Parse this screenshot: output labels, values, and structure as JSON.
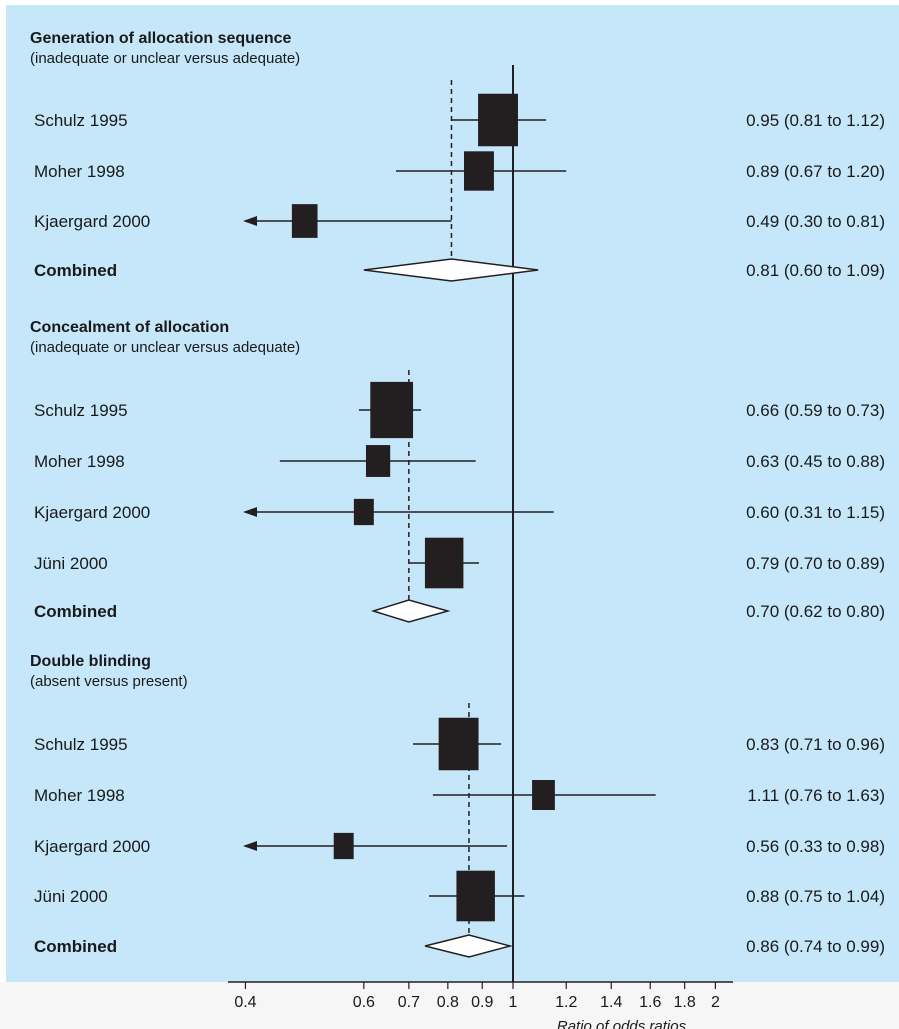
{
  "chart_data": {
    "type": "forest",
    "xlabel": "Ratio of odds ratios",
    "x_scale": "log",
    "xlim": [
      0.37,
      2.05
    ],
    "reference_line": 1,
    "x_ticks": [
      0.4,
      0.6,
      0.7,
      0.8,
      0.9,
      1,
      1.2,
      1.4,
      1.6,
      1.8,
      2
    ],
    "x_tick_labels": [
      "0.4",
      "0.6",
      "0.7",
      "0.8",
      "0.9",
      "1",
      "1.2",
      "1.4",
      "1.6",
      "1.8",
      "2"
    ],
    "groups": [
      {
        "title": "Generation of allocation sequence",
        "subtitle": "(inadequate or unclear versus adequate)",
        "studies": [
          {
            "name": "Schulz 1995",
            "estimate": 0.95,
            "lower": 0.81,
            "upper": 1.12,
            "ci_text": "0.95 (0.81 to 1.12)",
            "weight": 1.0,
            "arrow_left": false
          },
          {
            "name": "Moher 1998",
            "estimate": 0.89,
            "lower": 0.67,
            "upper": 1.2,
            "ci_text": "0.89 (0.67 to 1.20)",
            "weight": 0.65,
            "arrow_left": false
          },
          {
            "name": "Kjaergard 2000",
            "estimate": 0.49,
            "lower": 0.3,
            "upper": 0.81,
            "ci_text": "0.49 (0.30 to 0.81)",
            "weight": 0.5,
            "arrow_left": true
          }
        ],
        "combined": {
          "name": "Combined",
          "estimate": 0.81,
          "lower": 0.6,
          "upper": 1.09,
          "ci_text": "0.81 (0.60 to 1.09)"
        }
      },
      {
        "title": "Concealment of allocation",
        "subtitle": "(inadequate or unclear versus adequate)",
        "studies": [
          {
            "name": "Schulz 1995",
            "estimate": 0.66,
            "lower": 0.59,
            "upper": 0.73,
            "ci_text": "0.66 (0.59 to 0.73)",
            "weight": 1.1,
            "arrow_left": false
          },
          {
            "name": "Moher 1998",
            "estimate": 0.63,
            "lower": 0.45,
            "upper": 0.88,
            "ci_text": "0.63 (0.45 to 0.88)",
            "weight": 0.45,
            "arrow_left": false
          },
          {
            "name": "Kjaergard 2000",
            "estimate": 0.6,
            "lower": 0.31,
            "upper": 1.15,
            "ci_text": "0.60 (0.31 to 1.15)",
            "weight": 0.3,
            "arrow_left": true
          },
          {
            "name": "Jüni 2000",
            "estimate": 0.79,
            "lower": 0.7,
            "upper": 0.89,
            "ci_text": "0.79 (0.70 to 0.89)",
            "weight": 0.95,
            "arrow_left": false
          }
        ],
        "combined": {
          "name": "Combined",
          "estimate": 0.7,
          "lower": 0.62,
          "upper": 0.8,
          "ci_text": "0.70 (0.62 to 0.80)"
        }
      },
      {
        "title": "Double blinding",
        "subtitle": "(absent versus present)",
        "studies": [
          {
            "name": "Schulz 1995",
            "estimate": 0.83,
            "lower": 0.71,
            "upper": 0.96,
            "ci_text": "0.83 (0.71 to 0.96)",
            "weight": 1.0,
            "arrow_left": false
          },
          {
            "name": "Moher 1998",
            "estimate": 1.11,
            "lower": 0.76,
            "upper": 1.63,
            "ci_text": "1.11 (0.76 to 1.63)",
            "weight": 0.4,
            "arrow_left": false
          },
          {
            "name": "Kjaergard 2000",
            "estimate": 0.56,
            "lower": 0.33,
            "upper": 0.98,
            "ci_text": "0.56 (0.33 to 0.98)",
            "weight": 0.3,
            "arrow_left": true
          },
          {
            "name": "Jüni 2000",
            "estimate": 0.88,
            "lower": 0.75,
            "upper": 1.04,
            "ci_text": "0.88 (0.75 to 1.04)",
            "weight": 0.95,
            "arrow_left": false
          }
        ],
        "combined": {
          "name": "Combined",
          "estimate": 0.86,
          "lower": 0.74,
          "upper": 0.99,
          "ci_text": "0.86 (0.74 to 0.99)"
        }
      }
    ]
  },
  "colors": {
    "panel_background": "#c5e7f9",
    "marker": "#231f20",
    "footer_background": "#f6f6f6"
  }
}
